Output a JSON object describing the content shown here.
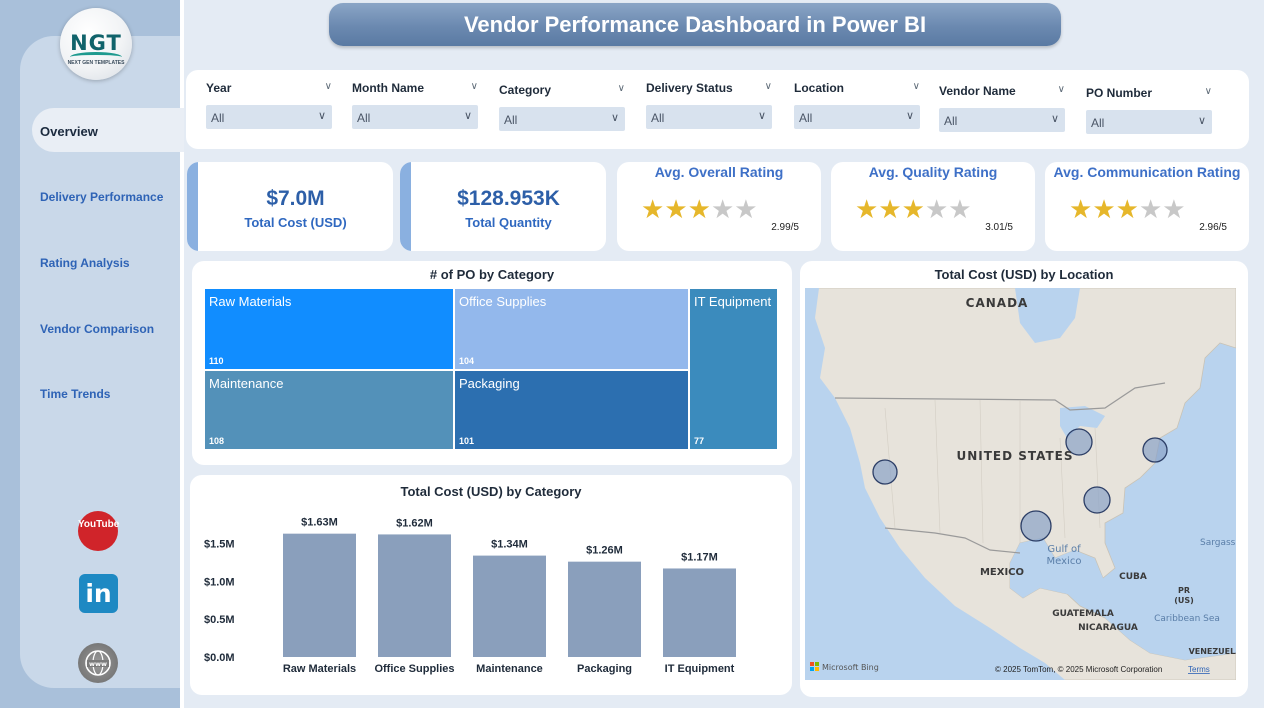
{
  "app": {
    "title": "Vendor Performance Dashboard in Power BI",
    "logo_text": "NGT",
    "logo_subtext": "NEXT GEN TEMPLATES"
  },
  "sidebar": {
    "items": [
      {
        "label": "Overview",
        "active": true
      },
      {
        "label": "Delivery Performance",
        "active": false
      },
      {
        "label": "Rating Analysis",
        "active": false
      },
      {
        "label": "Vendor Comparison",
        "active": false
      },
      {
        "label": "Time Trends",
        "active": false
      }
    ],
    "social": {
      "youtube": "YouTube",
      "linkedin": "in",
      "web": "www"
    }
  },
  "filters": [
    {
      "label": "Year",
      "value": "All"
    },
    {
      "label": "Month Name",
      "value": "All"
    },
    {
      "label": "Category",
      "value": "All"
    },
    {
      "label": "Delivery Status",
      "value": "All"
    },
    {
      "label": "Location",
      "value": "All"
    },
    {
      "label": "Vendor Name",
      "value": "All"
    },
    {
      "label": "PO Number",
      "value": "All"
    }
  ],
  "kpis": [
    {
      "value": "$7.0M",
      "label": "Total Cost (USD)"
    },
    {
      "value": "$128.953K",
      "label": "Total Quantity"
    }
  ],
  "ratings": [
    {
      "title": "Avg. Overall Rating",
      "value": "2.99/5",
      "stars": 3
    },
    {
      "title": "Avg. Quality Rating",
      "value": "3.01/5",
      "stars": 3
    },
    {
      "title": "Avg. Communication Rating",
      "value": "2.96/5",
      "stars": 3
    }
  ],
  "treemap": {
    "title": "# of PO by Category",
    "cells": [
      {
        "name": "Raw Materials",
        "count": "110",
        "color": "#118dff"
      },
      {
        "name": "Office Supplies",
        "count": "104",
        "color": "#93b8ec"
      },
      {
        "name": "IT Equipment",
        "count": "77",
        "color": "#3b8bbd"
      },
      {
        "name": "Maintenance",
        "count": "108",
        "color": "#5391b9"
      },
      {
        "name": "Packaging",
        "count": "101",
        "color": "#2c6fb0"
      }
    ]
  },
  "chart_data": {
    "type": "bar",
    "title": "Total Cost (USD) by Category",
    "categories": [
      "Raw Materials",
      "Office Supplies",
      "Maintenance",
      "Packaging",
      "IT Equipment"
    ],
    "values": [
      1.63,
      1.62,
      1.34,
      1.26,
      1.17
    ],
    "data_labels": [
      "$1.63M",
      "$1.62M",
      "$1.34M",
      "$1.26M",
      "$1.17M"
    ],
    "yticks": [
      "$0.0M",
      "$0.5M",
      "$1.0M",
      "$1.5M"
    ],
    "ylim": [
      0,
      1.5
    ],
    "color": "#8a9fbc",
    "xlabel": "",
    "ylabel": ""
  },
  "map": {
    "title": "Total Cost (USD) by Location",
    "labels": {
      "canada": "CANADA",
      "united_states": "UNITED STATES",
      "mexico": "MEXICO",
      "gulf": "Gulf of",
      "gulf2": "Mexico",
      "cuba": "CUBA",
      "pr": "PR",
      "pr2": "(US)",
      "guatemala": "GUATEMALA",
      "nicaragua": "NICARAGUA",
      "caribbean": "Caribbean Sea",
      "venezuela": "VENEZUELA",
      "sargasso": "Sargass"
    },
    "attribution": "© 2025 TomTom, © 2025 Microsoft Corporation",
    "terms": "Terms",
    "bing": "Microsoft Bing"
  }
}
